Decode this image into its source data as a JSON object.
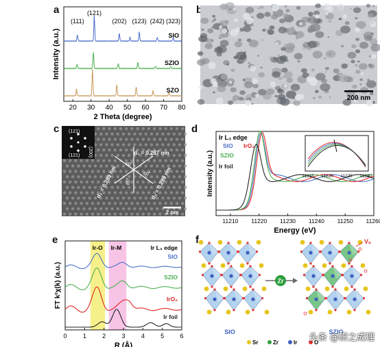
{
  "panels": {
    "a": {
      "label": "a",
      "xlabel": "2 Theta (degree)",
      "ylabel": "Intensity (a.u.)",
      "xticks": [
        "20",
        "30",
        "40",
        "50",
        "60",
        "70",
        "80"
      ],
      "peaks": [
        "(111)",
        "(121)",
        "(202)",
        "(123)",
        "(242)",
        "(323)"
      ],
      "series": [
        "SIO",
        "SZIO",
        "SZO"
      ]
    },
    "b": {
      "label": "b",
      "scale": "200 nm"
    },
    "c": {
      "label": "c",
      "fft_labels": [
        "(121)",
        "(200)",
        "(121)"
      ],
      "d1": "d₁ = 0.287 nm",
      "d2": "d₂ = 0.289 nm",
      "d3": "d₃ = 0.289 nm",
      "angles": [
        "60°",
        "60°",
        "60°"
      ],
      "scale": "2 nm"
    },
    "d": {
      "label": "d",
      "title": "Ir L₃ edge",
      "xlabel": "Energy (eV)",
      "ylabel": "Intensity (a.u.)",
      "xticks": [
        "11210",
        "11220",
        "11230",
        "11240",
        "11250",
        "11260"
      ],
      "inset_xticks": [
        "11215",
        "11220",
        "11225",
        "11230"
      ],
      "series": [
        "SIO",
        "IrO₂",
        "SZIO",
        "Ir foil"
      ]
    },
    "e": {
      "label": "e",
      "title": "Ir L₃ edge",
      "xlabel": "R (Å)",
      "ylabel": "FT k²χ(k) (a.u.)",
      "xticks": [
        "0",
        "1",
        "2",
        "3",
        "4",
        "5",
        "6"
      ],
      "bands": [
        "Ir-O",
        "Ir-M"
      ],
      "series": [
        "SIO",
        "SZIO",
        "IrO₂",
        "Ir foil"
      ]
    },
    "f": {
      "label": "f",
      "left_caption": "SIO",
      "right_caption": "SZIO",
      "zr": "Zr",
      "vo": "Vₒ",
      "legend": [
        "Sr",
        "Zr",
        "Ir",
        "O"
      ]
    }
  },
  "watermark": "头条 @研之成理",
  "colors": {
    "sio": "#4a6fc7",
    "szio": "#4caf50",
    "szo": "#c79a5a",
    "iro2": "#e02424",
    "irfoil": "#222222",
    "band_iro": "#f6f08a",
    "band_irm": "#f7c4e6",
    "octa_blue": "#9fc7ea",
    "octa_green": "#57b96a",
    "sr": "#e7c51a",
    "ir": "#3d5fbf",
    "o": "#e03030",
    "zr": "#2e9e3e"
  },
  "chart_data": [
    {
      "type": "line",
      "title": "",
      "xlabel": "2 Theta (degree)",
      "ylabel": "Intensity (a.u.)",
      "xlim": [
        15,
        80
      ],
      "series": [
        {
          "name": "SIO",
          "peaks": [
            [
              22.5,
              0.25
            ],
            [
              31.8,
              1.0
            ],
            [
              45.6,
              0.3
            ],
            [
              51.5,
              0.15
            ],
            [
              56.6,
              0.35
            ],
            [
              66.5,
              0.15
            ],
            [
              75.3,
              0.12
            ]
          ]
        },
        {
          "name": "SZIO",
          "peaks": [
            [
              22.3,
              0.2
            ],
            [
              31.3,
              0.8
            ],
            [
              45.0,
              0.25
            ],
            [
              55.8,
              0.3
            ],
            [
              65.5,
              0.12
            ],
            [
              74.0,
              0.1
            ]
          ]
        },
        {
          "name": "SZO",
          "peaks": [
            [
              22.0,
              0.25
            ],
            [
              30.8,
              1.0
            ],
            [
              44.2,
              0.4
            ],
            [
              54.9,
              0.35
            ],
            [
              64.2,
              0.2
            ],
            [
              72.9,
              0.15
            ]
          ]
        }
      ]
    },
    {
      "type": "line",
      "title": "Ir L₃ edge",
      "xlabel": "Energy (eV)",
      "ylabel": "Intensity (a.u.)",
      "xlim": [
        11205,
        11260
      ],
      "series": [
        {
          "name": "SIO",
          "white_line": 11220.5
        },
        {
          "name": "IrO₂",
          "white_line": 11221
        },
        {
          "name": "SZIO",
          "white_line": 11220.3
        },
        {
          "name": "Ir foil",
          "white_line": 11219
        }
      ]
    },
    {
      "type": "line",
      "title": "Ir L₃ edge",
      "xlabel": "R (Å)",
      "ylabel": "FT k²χ(k) (a.u.)",
      "xlim": [
        0,
        6
      ],
      "series": [
        {
          "name": "SIO",
          "main_peak_R": 1.6
        },
        {
          "name": "SZIO",
          "main_peak_R": 1.6
        },
        {
          "name": "IrO₂",
          "main_peak_R": 1.6
        },
        {
          "name": "Ir foil",
          "main_peak_R": 2.6
        }
      ]
    }
  ]
}
